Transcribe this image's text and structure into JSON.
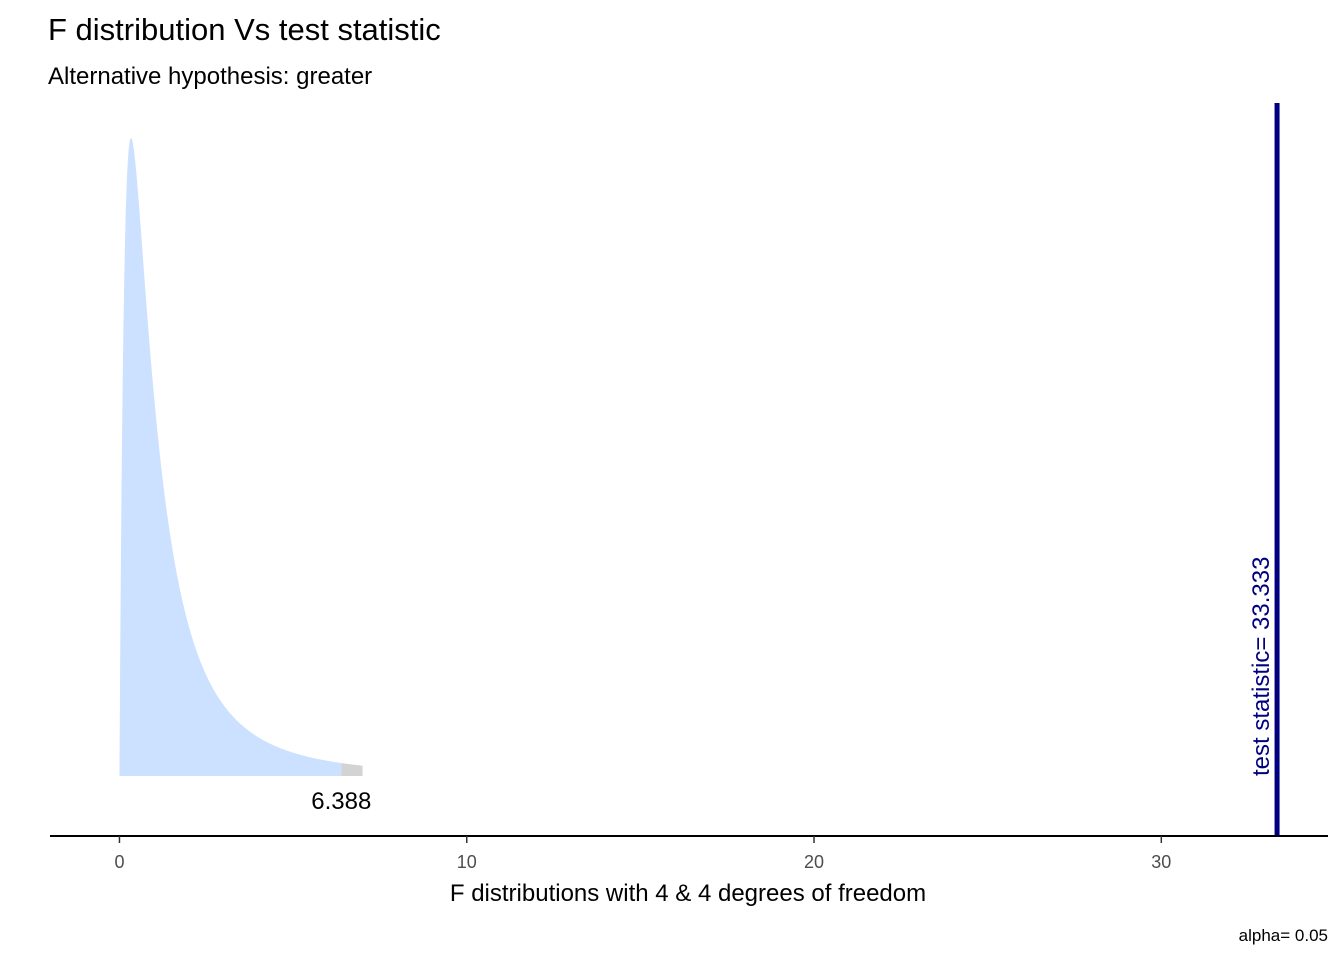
{
  "chart_data": {
    "type": "area",
    "title": "F distribution Vs test statistic",
    "subtitle": "Alternative hypothesis: greater",
    "xlabel": "F distributions with 4 & 4 degrees of freedom",
    "ylabel": "",
    "caption": "alpha= 0.05",
    "df1": 4,
    "df2": 4,
    "xlim": [
      -2,
      34.8
    ],
    "x_ticks": [
      0,
      10,
      20,
      30
    ],
    "x_tick_labels": [
      "0",
      "10",
      "20",
      "30"
    ],
    "density_range": [
      0,
      7
    ],
    "critical_value": 6.388,
    "critical_label": "6.388",
    "test_statistic": 33.333,
    "test_statistic_label": "test statistic= 33.333",
    "grid": false,
    "colors": {
      "density_fill": "#cce1ff",
      "rejection_fill": "#d3d3d3",
      "test_statistic_line": "#000080",
      "axis": "#000000"
    }
  }
}
